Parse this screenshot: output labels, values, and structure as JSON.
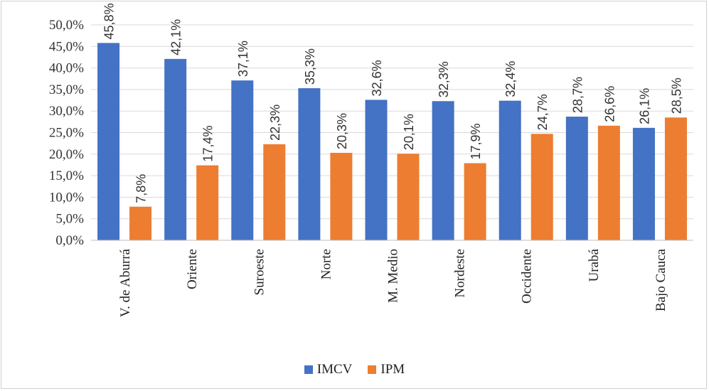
{
  "chart_data": {
    "type": "bar",
    "categories": [
      "V. de Aburrá",
      "Oriente",
      "Suroeste",
      "Norte",
      "M. Medio",
      "Nordeste",
      "Occidente",
      "Urabá",
      "Bajo Cauca"
    ],
    "series": [
      {
        "name": "IMCV",
        "color": "#4472C4",
        "values": [
          45.8,
          42.1,
          37.1,
          35.3,
          32.6,
          32.3,
          32.4,
          28.7,
          26.1
        ],
        "labels": [
          "45,8%",
          "42,1%",
          "37,1%",
          "35,3%",
          "32,6%",
          "32,3%",
          "32,4%",
          "28,7%",
          "26,1%"
        ]
      },
      {
        "name": "IPM",
        "color": "#ED7D31",
        "values": [
          7.8,
          17.4,
          22.3,
          20.3,
          20.1,
          17.9,
          24.7,
          26.6,
          28.5
        ],
        "labels": [
          "7,8%",
          "17,4%",
          "22,3%",
          "20,3%",
          "20,1%",
          "17,9%",
          "24,7%",
          "26,6%",
          "28,5%"
        ]
      }
    ],
    "yticks": [
      "0,0%",
      "5,0%",
      "10,0%",
      "15,0%",
      "20,0%",
      "25,0%",
      "30,0%",
      "35,0%",
      "40,0%",
      "45,0%",
      "50,0%"
    ],
    "ylim": [
      0,
      50
    ],
    "title": "",
    "xlabel": "",
    "ylabel": "",
    "grid": true,
    "legend": "bottom-center"
  }
}
